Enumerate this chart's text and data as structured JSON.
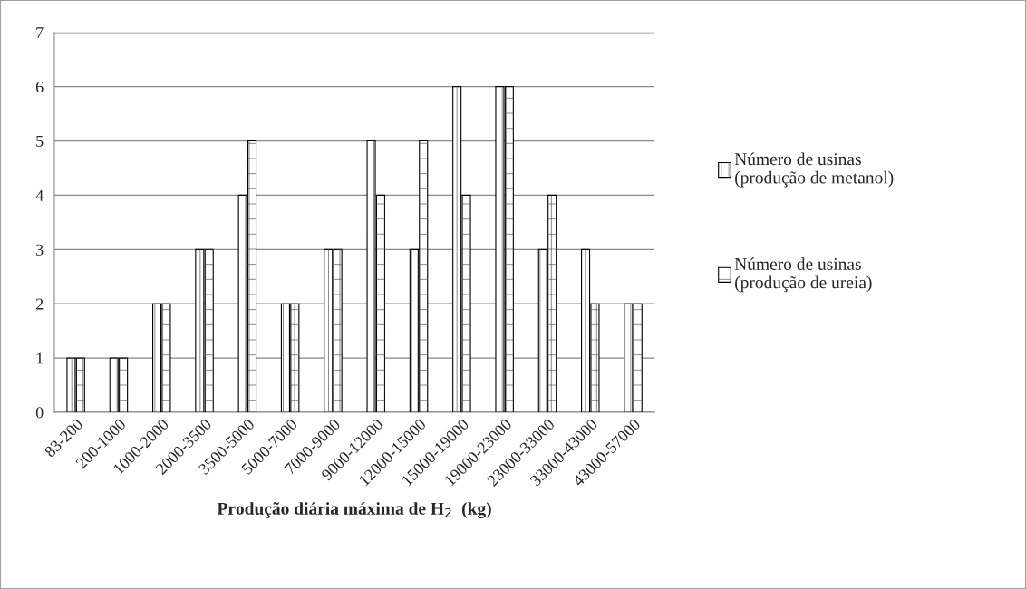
{
  "chart_data": {
    "type": "bar",
    "xlabel": "Produção diária máxima de H$_{2}$  (kg)",
    "categories": [
      "83-200",
      "200-1000",
      "1000-2000",
      "2000-3500",
      "3500-5000",
      "5000-7000",
      "7000-9000",
      "9000-12000",
      "12000-15000",
      "15000-19000",
      "19000-23000",
      "23000-33000",
      "33000-43000",
      "43000-57000"
    ],
    "series": [
      {
        "name": "Número de usinas\n(produção de metanol)",
        "color": "#ffffff",
        "values": [
          1,
          1,
          2,
          3,
          4,
          2,
          3,
          5,
          3,
          6,
          6,
          3,
          3,
          2
        ]
      },
      {
        "name": "Número de usinas\n(produção de ureia)",
        "color": "#ffffff",
        "values": [
          1,
          1,
          2,
          3,
          5,
          2,
          3,
          4,
          5,
          4,
          6,
          4,
          2,
          2
        ]
      }
    ],
    "ylim": [
      0,
      7
    ],
    "yticks": [
      0,
      1,
      2,
      3,
      4,
      5,
      6,
      7
    ],
    "grid": "y",
    "legend": "right"
  }
}
